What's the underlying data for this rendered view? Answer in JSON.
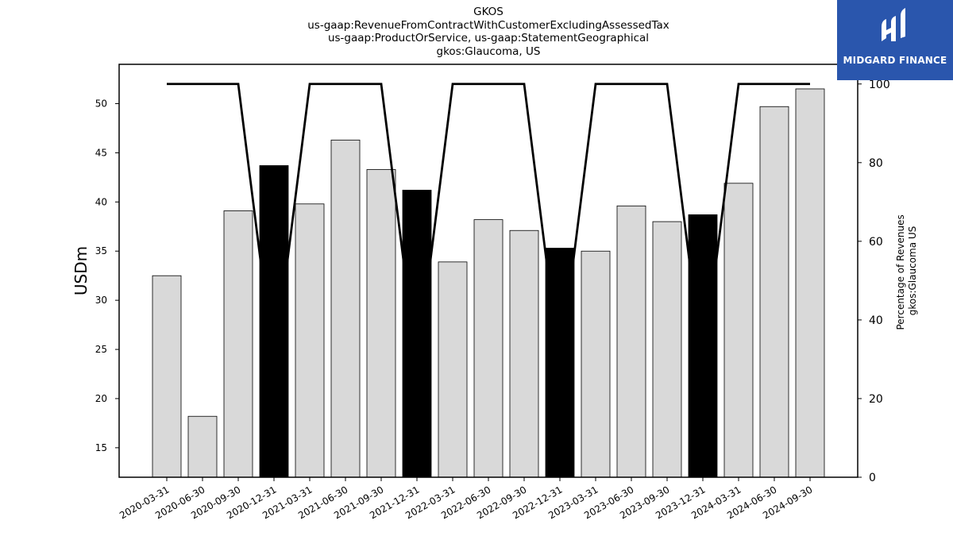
{
  "chart_data": {
    "type": "bar",
    "title_lines": [
      "GKOS",
      "us-gaap:RevenueFromContractWithCustomerExcludingAssessedTax",
      "us-gaap:ProductOrService, us-gaap:StatementGeographical",
      "gkos:Glaucoma, US"
    ],
    "ylabel": "USDm",
    "y2label_lines": [
      "Percentage of Revenues",
      "gkos:Glaucoma US"
    ],
    "categories": [
      "2020-03-31",
      "2020-06-30",
      "2020-09-30",
      "2020-12-31",
      "2021-03-31",
      "2021-06-30",
      "2021-09-30",
      "2021-12-31",
      "2022-03-31",
      "2022-06-30",
      "2022-09-30",
      "2022-12-31",
      "2023-03-31",
      "2023-06-30",
      "2023-09-30",
      "2023-12-31",
      "2024-03-31",
      "2024-06-30",
      "2024-09-30"
    ],
    "values": [
      32.5,
      18.2,
      39.1,
      43.7,
      39.8,
      46.3,
      43.3,
      41.2,
      33.9,
      38.2,
      37.1,
      35.3,
      35.0,
      39.6,
      38.0,
      38.7,
      41.9,
      49.7,
      51.5
    ],
    "highlighted": [
      false,
      false,
      false,
      true,
      false,
      false,
      false,
      true,
      false,
      false,
      false,
      true,
      false,
      false,
      false,
      true,
      false,
      false,
      false
    ],
    "percentage_line": [
      100,
      100,
      100,
      28,
      100,
      100,
      100,
      28,
      100,
      100,
      100,
      28,
      100,
      100,
      100,
      28,
      100,
      100,
      100
    ],
    "ylim": [
      12,
      54
    ],
    "yticks": [
      15,
      20,
      25,
      30,
      35,
      40,
      45,
      50
    ],
    "y2lim": [
      0,
      105
    ],
    "y2ticks": [
      0,
      20,
      40,
      60,
      80,
      100
    ],
    "colors": {
      "bar": "#d9d9d9",
      "highlight": "#000000",
      "line": "#000000"
    }
  },
  "logo": {
    "text": "MIDGARD FINANCE",
    "background": "#2a56ad"
  }
}
